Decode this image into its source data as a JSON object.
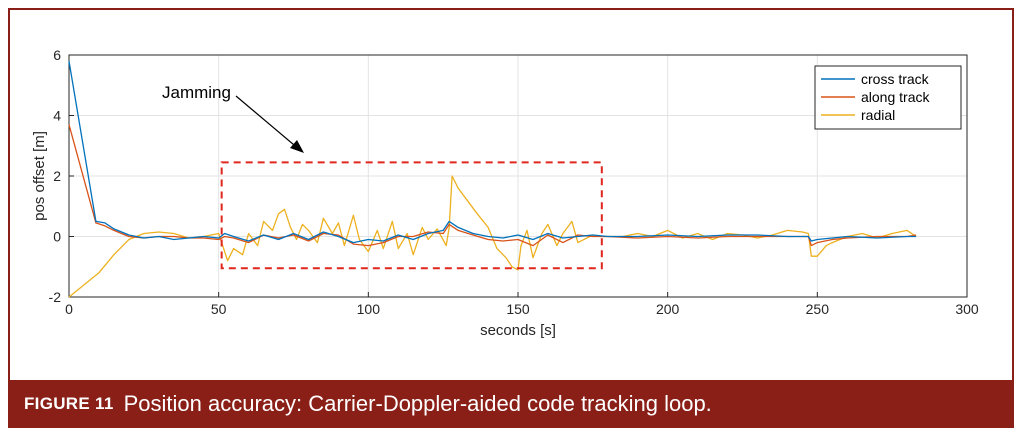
{
  "chart_data": {
    "type": "line",
    "title": "",
    "xlabel": "seconds [s]",
    "ylabel": "pos offset [m]",
    "xlim": [
      0,
      300
    ],
    "ylim": [
      -2,
      6
    ],
    "xticks": [
      0,
      50,
      100,
      150,
      200,
      250,
      300
    ],
    "yticks": [
      -2,
      0,
      2,
      4,
      6
    ],
    "grid": true,
    "legend_position": "top-right",
    "series": [
      {
        "name": "cross track",
        "color": "#0072BD",
        "x": [
          0,
          9,
          12,
          15,
          20,
          25,
          30,
          35,
          40,
          45,
          50,
          52,
          55,
          60,
          65,
          70,
          75,
          80,
          85,
          90,
          95,
          100,
          105,
          110,
          115,
          120,
          125,
          127,
          130,
          135,
          140,
          145,
          150,
          155,
          160,
          165,
          170,
          175,
          180,
          190,
          200,
          210,
          220,
          230,
          240,
          247,
          248,
          250,
          255,
          260,
          270,
          280,
          283
        ],
        "y": [
          5.8,
          0.5,
          0.45,
          0.25,
          0.05,
          -0.05,
          0.0,
          -0.1,
          -0.05,
          0.0,
          -0.05,
          0.1,
          0.0,
          -0.15,
          0.05,
          -0.1,
          0.1,
          -0.1,
          0.15,
          0.0,
          -0.2,
          -0.1,
          -0.15,
          0.05,
          -0.1,
          0.1,
          0.2,
          0.5,
          0.3,
          0.1,
          0.0,
          -0.05,
          0.05,
          -0.1,
          0.1,
          -0.05,
          0.0,
          0.05,
          0.0,
          0.0,
          0.05,
          0.0,
          0.05,
          0.05,
          0.0,
          0.0,
          -0.15,
          -0.1,
          -0.05,
          0.0,
          -0.05,
          0.0,
          0.0
        ]
      },
      {
        "name": "along track",
        "color": "#D95319",
        "x": [
          0,
          9,
          12,
          15,
          20,
          25,
          30,
          35,
          40,
          45,
          50,
          52,
          55,
          60,
          65,
          70,
          75,
          80,
          85,
          90,
          95,
          100,
          105,
          110,
          115,
          120,
          125,
          127,
          130,
          135,
          140,
          145,
          150,
          155,
          160,
          165,
          170,
          175,
          180,
          190,
          200,
          210,
          220,
          230,
          240,
          247,
          248,
          250,
          255,
          260,
          270,
          280,
          283
        ],
        "y": [
          3.7,
          0.45,
          0.35,
          0.2,
          0.0,
          -0.05,
          0.0,
          0.0,
          -0.05,
          -0.05,
          -0.1,
          0.0,
          -0.05,
          -0.2,
          0.05,
          -0.05,
          0.05,
          -0.15,
          0.1,
          0.05,
          -0.25,
          -0.3,
          -0.2,
          0.0,
          0.0,
          0.15,
          0.1,
          0.4,
          0.2,
          0.05,
          -0.1,
          -0.15,
          -0.1,
          -0.3,
          0.05,
          -0.2,
          0.05,
          0.0,
          0.0,
          -0.05,
          0.0,
          -0.05,
          0.0,
          0.0,
          0.0,
          0.0,
          -0.3,
          -0.2,
          -0.1,
          -0.05,
          0.0,
          0.0,
          0.05
        ]
      },
      {
        "name": "radial",
        "color": "#EDB120",
        "x": [
          0,
          5,
          10,
          15,
          20,
          25,
          30,
          35,
          40,
          45,
          50,
          53,
          55,
          58,
          60,
          63,
          65,
          68,
          70,
          72,
          74,
          76,
          78,
          80,
          83,
          85,
          88,
          90,
          92,
          95,
          97,
          100,
          103,
          105,
          108,
          110,
          113,
          115,
          118,
          120,
          123,
          126,
          127,
          128,
          130,
          133,
          136,
          140,
          143,
          146,
          148,
          150,
          151,
          153,
          155,
          158,
          160,
          163,
          165,
          168,
          170,
          175,
          178,
          185,
          190,
          195,
          200,
          205,
          210,
          215,
          220,
          225,
          230,
          235,
          240,
          245,
          247,
          248,
          250,
          253,
          255,
          260,
          265,
          270,
          275,
          280,
          283
        ],
        "y": [
          -2.0,
          -1.6,
          -1.2,
          -0.6,
          -0.1,
          0.1,
          0.15,
          0.1,
          -0.05,
          0.0,
          0.1,
          -0.8,
          -0.4,
          -0.6,
          0.1,
          -0.3,
          0.5,
          0.2,
          0.75,
          0.9,
          0.3,
          -0.1,
          0.4,
          0.2,
          -0.2,
          0.6,
          0.1,
          0.45,
          -0.3,
          0.7,
          -0.1,
          -0.5,
          0.2,
          -0.4,
          0.5,
          -0.4,
          0.1,
          -0.6,
          0.3,
          -0.1,
          0.25,
          -0.3,
          0.3,
          2.0,
          1.6,
          1.2,
          0.8,
          0.3,
          -0.4,
          -0.7,
          -1.0,
          -1.1,
          -0.3,
          0.2,
          -0.7,
          0.1,
          0.4,
          -0.3,
          0.1,
          0.5,
          -0.2,
          0.05,
          0.0,
          0.0,
          0.1,
          0.0,
          0.2,
          -0.05,
          0.1,
          -0.1,
          0.1,
          0.05,
          -0.05,
          0.05,
          0.2,
          0.15,
          0.1,
          -0.65,
          -0.65,
          -0.3,
          -0.2,
          0.0,
          0.1,
          -0.05,
          0.1,
          0.2,
          0.0
        ]
      }
    ],
    "annotations": [
      {
        "text": "Jamming",
        "type": "dashed-box",
        "x_range": [
          51,
          178
        ],
        "y_range": [
          -1.05,
          2.45
        ],
        "color": "#e0271e"
      }
    ]
  },
  "caption": {
    "label": "FIGURE 11",
    "text": "Position accuracy: Carrier-Doppler-aided code tracking loop."
  },
  "colors": {
    "caption_bg": "#8a1f18"
  }
}
